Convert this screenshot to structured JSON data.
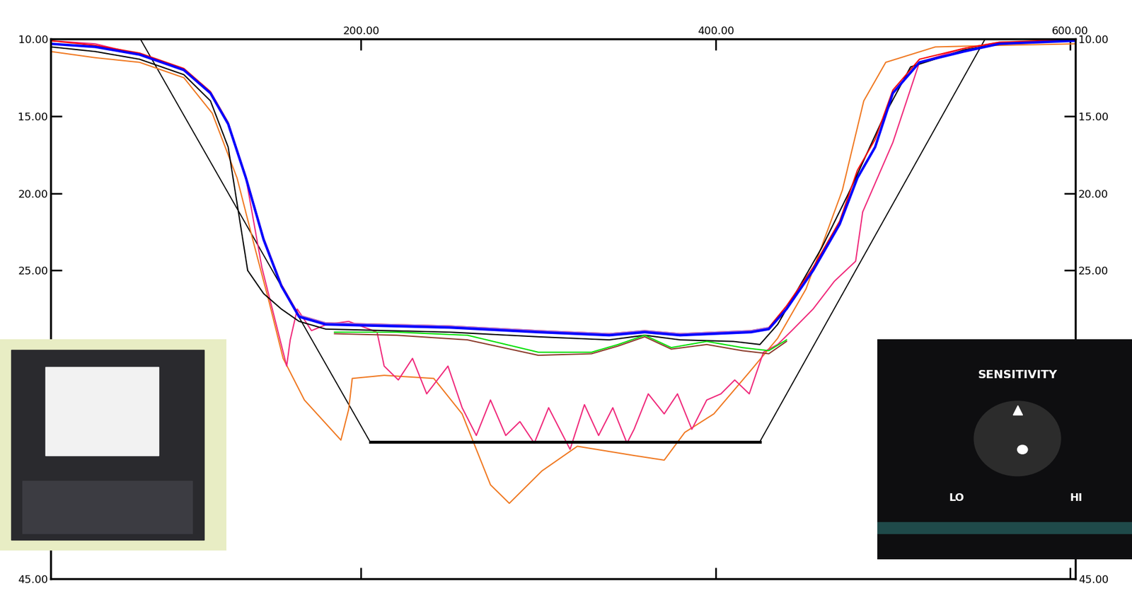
{
  "chart_data": {
    "type": "line",
    "xlim": [
      25,
      603
    ],
    "ylim": [
      45,
      10
    ],
    "xticks": [
      {
        "value": 200,
        "label": "200.00"
      },
      {
        "value": 400,
        "label": "400.00"
      },
      {
        "value": 600,
        "label": "600.00"
      }
    ],
    "yticks": [
      {
        "value": 10,
        "label": "10.00"
      },
      {
        "value": 15,
        "label": "15.00"
      },
      {
        "value": 20,
        "label": "20.00"
      },
      {
        "value": 25,
        "label": "25.00"
      },
      {
        "value": 45,
        "label": "45.00"
      }
    ],
    "grid": false,
    "annotations": [
      {
        "text": "SENSITIVITY"
      },
      {
        "text": "LO"
      },
      {
        "text": "HI"
      }
    ],
    "series": [
      {
        "color": "#000000",
        "x": [
          75.5,
          205,
          425,
          552
        ],
        "values": [
          10,
          36.1,
          36.1,
          10
        ]
      },
      {
        "color": "#f07820",
        "x": [
          25,
          50,
          75,
          100,
          116,
          130,
          140,
          148,
          156,
          168,
          188.6,
          193,
          195,
          213,
          241,
          257,
          273,
          283.6,
          302,
          322,
          354,
          371,
          382.6,
          399,
          419,
          435,
          451,
          471.5,
          483.6,
          496,
          524,
          560,
          603
        ],
        "values": [
          10.8,
          11.2,
          11.5,
          12.5,
          14.8,
          19,
          23.5,
          27,
          30.7,
          33.4,
          36,
          34,
          32,
          31.8,
          32,
          34.3,
          38.9,
          40.1,
          38,
          36.4,
          37,
          37.3,
          35.5,
          34.3,
          31.6,
          29.4,
          26.2,
          19.8,
          14,
          11.5,
          10.5,
          10.4,
          10.3
        ]
      },
      {
        "color": "#f0287a",
        "x": [
          25,
          50,
          75,
          100,
          115,
          125,
          135,
          144,
          158,
          160,
          164,
          172,
          180.5,
          193,
          209,
          213,
          221,
          229,
          237,
          249,
          257,
          265,
          273,
          281.6,
          289.6,
          297.7,
          305.8,
          317.9,
          326,
          334,
          342,
          350,
          354,
          362,
          371,
          378.5,
          386.6,
          395,
          403,
          410.8,
          419,
          427,
          435,
          443,
          455,
          467,
          479,
          483,
          500,
          515,
          540,
          560,
          603
        ],
        "values": [
          10.1,
          10.3,
          11,
          12,
          13.5,
          15.5,
          19,
          24.8,
          31.2,
          29.5,
          27.5,
          28.9,
          28.5,
          28.3,
          29,
          31.2,
          32.1,
          30.7,
          33,
          31.2,
          33.9,
          35.7,
          33.4,
          35.7,
          34.8,
          36.2,
          33.9,
          36.6,
          33.7,
          35.7,
          33.9,
          36.2,
          35.3,
          33,
          34.3,
          33,
          35.3,
          33.4,
          33,
          32.1,
          33,
          30.3,
          29.8,
          28.9,
          27.5,
          25.7,
          24.4,
          21.2,
          16.7,
          11.5,
          10.6,
          10.2,
          10.1
        ]
      },
      {
        "color": "#000000",
        "x": [
          25,
          50,
          75,
          100,
          115,
          125,
          136,
          145,
          155,
          165,
          180,
          250,
          300,
          340,
          360,
          380,
          410,
          425,
          435,
          445,
          460,
          475,
          485,
          495,
          510,
          540,
          560,
          603
        ],
        "values": [
          10.5,
          10.8,
          11.3,
          12.3,
          14,
          17,
          25,
          26.5,
          27.5,
          28.3,
          28.8,
          29,
          29.3,
          29.5,
          29.2,
          29.5,
          29.6,
          29.8,
          28.5,
          26.5,
          23.5,
          20,
          17.5,
          15,
          11.8,
          10.7,
          10.3,
          10.1
        ]
      },
      {
        "color": "#00e000",
        "x": [
          185,
          220,
          260,
          300,
          330,
          345,
          360,
          375,
          395,
          415,
          430,
          440
        ],
        "values": [
          29,
          29,
          29.2,
          30.3,
          30.3,
          29.8,
          29.2,
          30,
          29.6,
          30,
          30.2,
          29.5
        ]
      },
      {
        "color": "#8b3a2a",
        "x": [
          185,
          220,
          260,
          300,
          330,
          345,
          360,
          375,
          395,
          415,
          430,
          440
        ],
        "values": [
          29.1,
          29.2,
          29.5,
          30.5,
          30.4,
          29.9,
          29.3,
          30.1,
          29.8,
          30.2,
          30.4,
          29.6
        ]
      },
      {
        "color": "#ff0000",
        "x": [
          25,
          50,
          75,
          100,
          115,
          125,
          135,
          145,
          155,
          165,
          180,
          250,
          300,
          340,
          360,
          380,
          420,
          430,
          440,
          455,
          470,
          480,
          490,
          500,
          515,
          540,
          560,
          603
        ],
        "values": [
          10.1,
          10.4,
          10.9,
          11.9,
          13.4,
          15.4,
          18.9,
          22.9,
          25.9,
          27.9,
          28.4,
          28.6,
          28.9,
          29.1,
          28.9,
          29.1,
          28.9,
          28.7,
          27.3,
          24.8,
          21.8,
          18.5,
          16.5,
          13.3,
          11.3,
          10.6,
          10.2,
          10
        ]
      },
      {
        "color": "#a070e0",
        "x": [
          165,
          180,
          250,
          300,
          340,
          360,
          380,
          420,
          430
        ],
        "values": [
          27.9,
          28.4,
          28.6,
          28.9,
          29.1,
          28.9,
          29.1,
          28.9,
          28.7
        ]
      },
      {
        "color": "#0000ff",
        "x": [
          25,
          50,
          75,
          100,
          115,
          125,
          135,
          145,
          155,
          165,
          180,
          250,
          300,
          340,
          360,
          380,
          420,
          430,
          440,
          455,
          470,
          480,
          490,
          500,
          515,
          540,
          560,
          603
        ],
        "values": [
          10.3,
          10.5,
          11,
          12,
          13.5,
          15.5,
          19,
          23,
          26,
          28,
          28.5,
          28.7,
          29,
          29.2,
          29,
          29.2,
          29,
          28.8,
          27.5,
          25,
          22,
          19,
          17,
          13.5,
          11.5,
          10.8,
          10.3,
          10.1
        ]
      }
    ]
  }
}
